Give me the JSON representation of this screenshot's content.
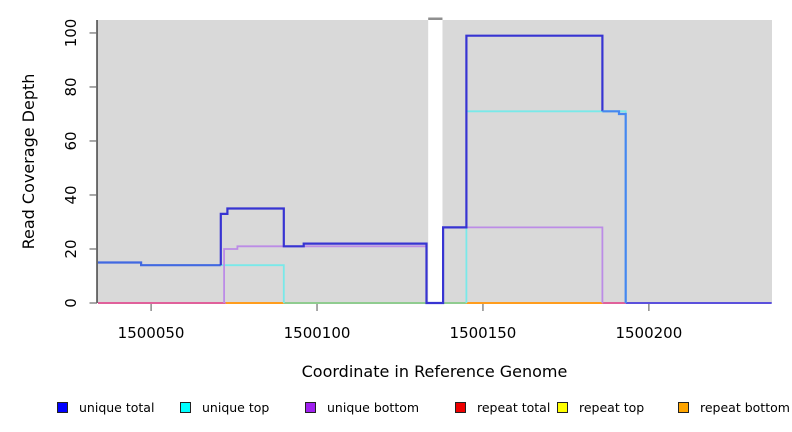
{
  "chart_data": {
    "type": "line",
    "title": "",
    "xlabel": "Coordinate in Reference Genome",
    "ylabel": "Read Coverage Depth",
    "xlim": [
      1500033.7,
      1500237.1
    ],
    "ylim": [
      0,
      104.8
    ],
    "grid": false,
    "plot_background": "#d9d9d9",
    "x_ticks": {
      "values": [
        1500050,
        1500100,
        1500150,
        1500200
      ],
      "labels": [
        "1500050",
        "1500100",
        "1500150",
        "1500200"
      ]
    },
    "y_ticks": {
      "values": [
        0,
        20,
        40,
        60,
        80,
        100
      ],
      "labels": [
        "0",
        "20",
        "40",
        "60",
        "80",
        "100"
      ]
    },
    "gap_region": {
      "x0": 1500133.5,
      "x1": 1500137.8,
      "color": "#ffffff",
      "cap_color": "#8f8f8f"
    },
    "series": [
      {
        "name": "unique total",
        "color": "#0000ff",
        "step_points": [
          [
            1500034,
            15
          ],
          [
            1500047,
            14
          ],
          [
            1500071,
            33
          ],
          [
            1500073,
            35
          ],
          [
            1500090,
            21
          ],
          [
            1500096,
            22
          ],
          [
            1500133,
            0
          ],
          [
            1500138,
            28
          ],
          [
            1500145,
            99
          ],
          [
            1500186,
            71
          ],
          [
            1500191,
            70
          ],
          [
            1500193,
            0
          ],
          [
            1500237,
            0
          ]
        ]
      },
      {
        "name": "unique top",
        "color": "#00ffff",
        "step_points": [
          [
            1500034,
            14
          ],
          [
            1500090,
            0
          ],
          [
            1500145,
            71
          ],
          [
            1500193,
            0
          ],
          [
            1500237,
            0
          ]
        ]
      },
      {
        "name": "unique bottom",
        "color": "#a020f0",
        "step_points": [
          [
            1500034,
            0
          ],
          [
            1500072,
            20
          ],
          [
            1500076,
            21
          ],
          [
            1500133,
            0
          ],
          [
            1500138,
            28
          ],
          [
            1500186,
            0
          ],
          [
            1500237,
            0
          ]
        ]
      },
      {
        "name": "repeat total",
        "color": "#ee0000",
        "step_points": [
          [
            1500034,
            0
          ],
          [
            1500237,
            0
          ]
        ]
      },
      {
        "name": "repeat top",
        "color": "#ffff00",
        "step_points": [
          [
            1500034,
            0
          ],
          [
            1500237,
            0
          ]
        ]
      },
      {
        "name": "repeat bottom",
        "color": "#ffa500",
        "step_points": [
          [
            1500034,
            0
          ],
          [
            1500237,
            0
          ]
        ]
      }
    ],
    "visible_segments": [
      {
        "name": "zero-line-repeat-total-left",
        "color": "#e0619b",
        "width": 2,
        "vertices": [
          [
            1500034,
            0
          ],
          [
            1500072.5,
            0
          ]
        ]
      },
      {
        "name": "zero-line-repeat-bottom-1",
        "color": "#ff9d1e",
        "width": 2,
        "vertices": [
          [
            1500072.5,
            0
          ],
          [
            1500090,
            0
          ]
        ]
      },
      {
        "name": "zero-line-blend-green",
        "color": "#90cc90",
        "width": 2,
        "vertices": [
          [
            1500090,
            0
          ],
          [
            1500145,
            0
          ]
        ]
      },
      {
        "name": "zero-line-repeat-bottom-2",
        "color": "#ff9d1e",
        "width": 2,
        "vertices": [
          [
            1500145,
            0
          ],
          [
            1500186,
            0
          ]
        ]
      },
      {
        "name": "zero-line-repeat-total-right",
        "color": "#e0619b",
        "width": 2,
        "vertices": [
          [
            1500186,
            0
          ],
          [
            1500193,
            0
          ]
        ]
      },
      {
        "name": "zero-line-unique-tail",
        "color": "#5b50dc",
        "width": 2,
        "vertices": [
          [
            1500193,
            0
          ],
          [
            1500237,
            0
          ]
        ]
      },
      {
        "name": "unique-top-box-left",
        "color": "#79e9e9",
        "width": 1.8,
        "vertices": [
          [
            1500071,
            14
          ],
          [
            1500090,
            14
          ],
          [
            1500090,
            0
          ]
        ]
      },
      {
        "name": "unique-top-box-right",
        "color": "#79e9e9",
        "width": 1.8,
        "vertices": [
          [
            1500145,
            0
          ],
          [
            1500145,
            71
          ],
          [
            1500193,
            71
          ],
          [
            1500193,
            0
          ]
        ]
      },
      {
        "name": "unique-bottom-left",
        "color": "#bc8ce6",
        "width": 1.8,
        "vertices": [
          [
            1500072,
            0
          ],
          [
            1500072,
            20
          ],
          [
            1500076,
            20
          ],
          [
            1500076,
            21
          ],
          [
            1500133,
            21
          ],
          [
            1500133,
            0
          ]
        ]
      },
      {
        "name": "unique-bottom-right",
        "color": "#bc8ce6",
        "width": 1.8,
        "vertices": [
          [
            1500138,
            0
          ],
          [
            1500138,
            28
          ],
          [
            1500186,
            28
          ],
          [
            1500186,
            0
          ]
        ]
      },
      {
        "name": "unique-total-left",
        "color": "#4169e1",
        "width": 2.2,
        "vertices": [
          [
            1500034,
            15
          ],
          [
            1500047,
            15
          ],
          [
            1500047,
            14
          ],
          [
            1500071,
            14
          ]
        ]
      },
      {
        "name": "unique-total-main",
        "color": "#3734d2",
        "width": 2.2,
        "vertices": [
          [
            1500071,
            14
          ],
          [
            1500071,
            33
          ],
          [
            1500073,
            33
          ],
          [
            1500073,
            35
          ],
          [
            1500090,
            35
          ],
          [
            1500090,
            21
          ],
          [
            1500096,
            21
          ],
          [
            1500096,
            22
          ],
          [
            1500133,
            22
          ],
          [
            1500133,
            0
          ],
          [
            1500138,
            0
          ],
          [
            1500138,
            28
          ],
          [
            1500145,
            28
          ],
          [
            1500145,
            99
          ],
          [
            1500186,
            99
          ],
          [
            1500186,
            71
          ]
        ]
      },
      {
        "name": "unique-total-right",
        "color": "#4687f0",
        "width": 2.2,
        "vertices": [
          [
            1500186,
            71
          ],
          [
            1500191,
            71
          ],
          [
            1500191,
            70
          ],
          [
            1500193,
            70
          ],
          [
            1500193,
            0
          ]
        ]
      }
    ],
    "legend": {
      "position": "bottom",
      "items": [
        {
          "label": "unique total",
          "color": "#0000ff"
        },
        {
          "label": "unique top",
          "color": "#00ffff"
        },
        {
          "label": "unique bottom",
          "color": "#a020f0"
        },
        {
          "label": "repeat total",
          "color": "#ee0000"
        },
        {
          "label": "repeat top",
          "color": "#ffff00"
        },
        {
          "label": "repeat bottom",
          "color": "#ffa500"
        }
      ]
    }
  }
}
